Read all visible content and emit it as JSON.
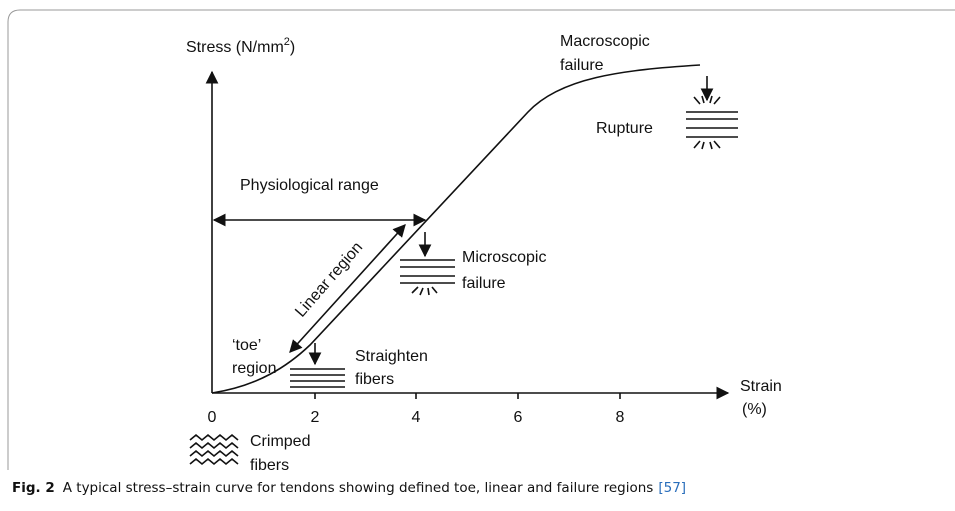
{
  "figure": {
    "y_axis_label": {
      "text": "Stress (N/mm",
      "superscript": "2",
      "suffix": ")"
    },
    "x_axis_label": {
      "line1": "Strain",
      "line2": "(%)"
    },
    "x_tick_labels": [
      "0",
      "2",
      "4",
      "6",
      "8"
    ],
    "annotations": {
      "macroscopic_failure": [
        "Macroscopic",
        "failure"
      ],
      "rupture": "Rupture",
      "physiological_range": "Physiological range",
      "linear_region": "Linear region",
      "microscopic_failure": [
        "Microscopic",
        "failure"
      ],
      "toe_region": [
        "‘toe’",
        "region"
      ],
      "straighten_fibers": [
        "Straighten",
        "fibers"
      ],
      "crimped_fibers": [
        "Crimped",
        "fibers"
      ]
    }
  },
  "caption": {
    "label": "Fig. 2",
    "text": "A typical stress–strain curve for tendons showing defined toe, linear and failure regions",
    "reference": "[57]"
  }
}
